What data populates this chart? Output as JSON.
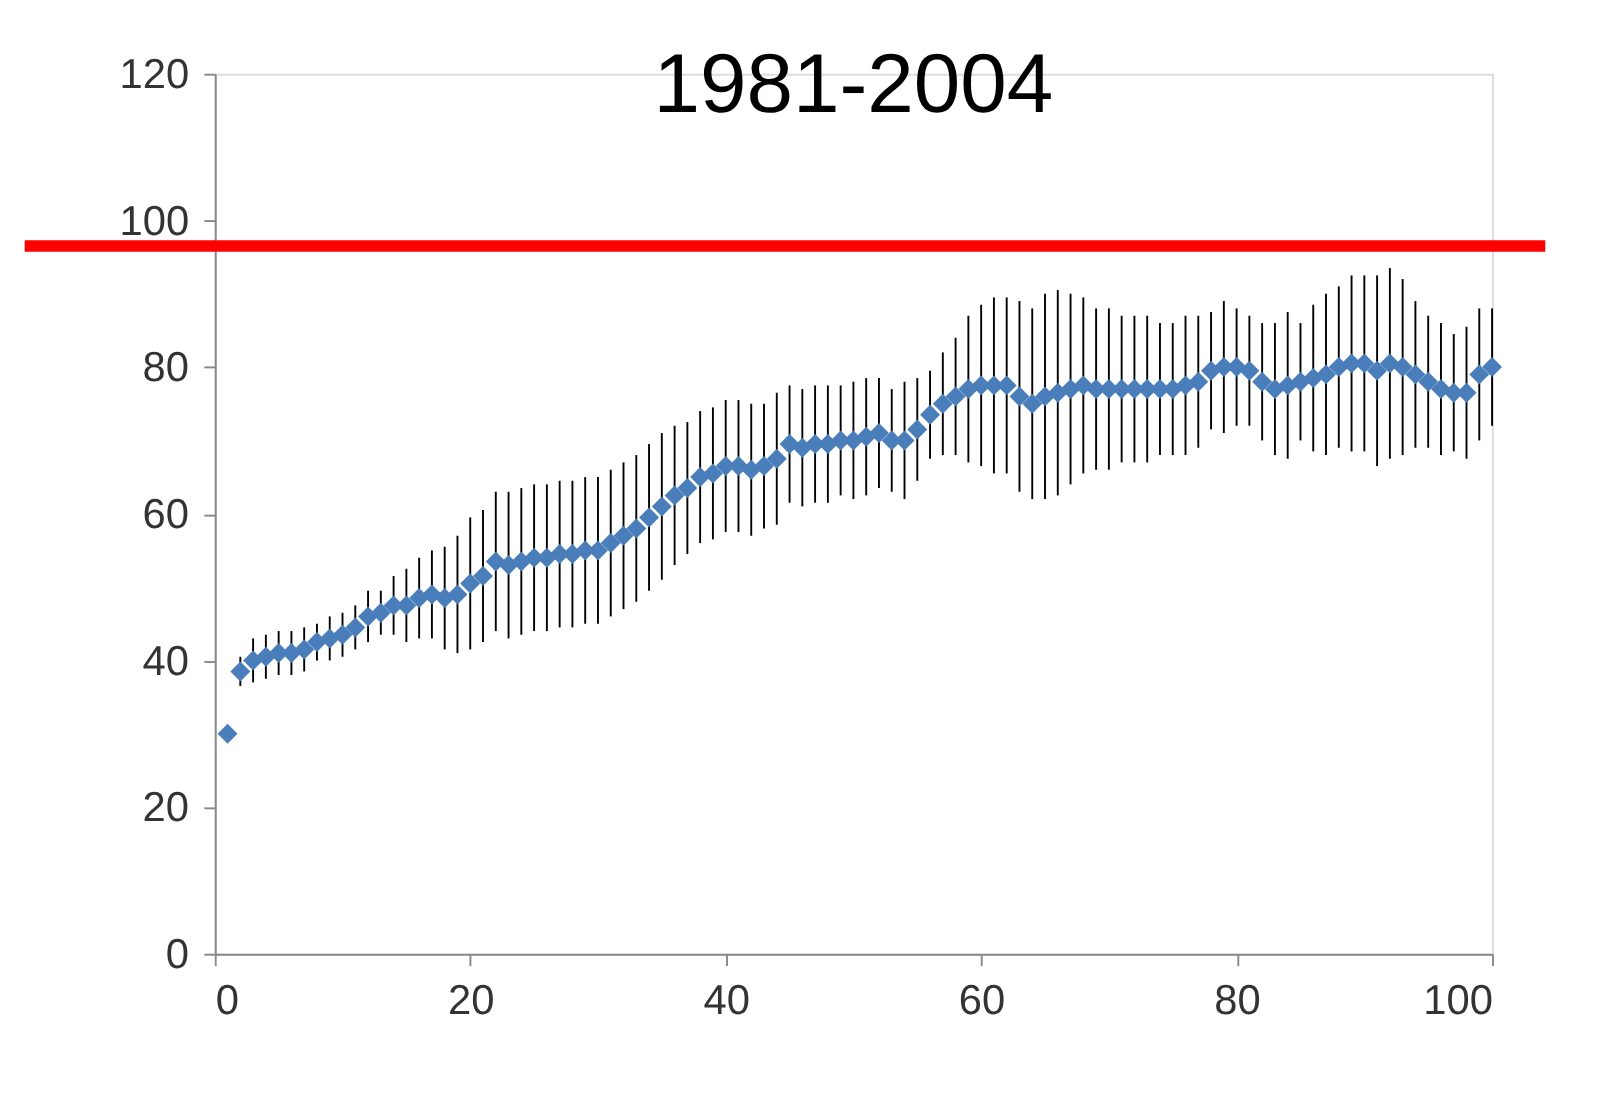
{
  "chart_data": {
    "type": "scatter",
    "title": "1981-2004",
    "x": [
      1,
      2,
      3,
      4,
      5,
      6,
      7,
      8,
      9,
      10,
      11,
      12,
      13,
      14,
      15,
      16,
      17,
      18,
      19,
      20,
      21,
      22,
      23,
      24,
      25,
      26,
      27,
      28,
      29,
      30,
      31,
      32,
      33,
      34,
      35,
      36,
      37,
      38,
      39,
      40,
      41,
      42,
      43,
      44,
      45,
      46,
      47,
      48,
      49,
      50,
      51,
      52,
      53,
      54,
      55,
      56,
      57,
      58,
      59,
      60,
      61,
      62,
      63,
      64,
      65,
      66,
      67,
      68,
      69,
      70,
      71,
      72,
      73,
      74,
      75,
      76,
      77,
      78,
      79,
      80,
      81,
      82,
      83,
      84,
      85,
      86,
      87,
      88,
      89,
      90,
      91,
      92,
      93,
      94,
      95,
      96,
      97,
      98,
      99,
      100
    ],
    "series": [
      {
        "color": "#4a7ebb",
        "values": [
          30,
          38.5,
          40,
          40.5,
          41,
          41,
          41.5,
          42.5,
          43,
          43.5,
          44.5,
          46,
          46.5,
          47.5,
          47.5,
          48.5,
          49,
          48.5,
          49,
          50.5,
          51.5,
          53.5,
          53,
          53.5,
          54,
          54,
          54.5,
          54.5,
          55,
          55,
          56,
          57,
          58,
          59.5,
          61,
          62.5,
          63.5,
          65,
          65.5,
          66.5,
          66.5,
          66,
          66.5,
          67.5,
          69.5,
          69,
          69.5,
          69.5,
          70,
          70,
          70.5,
          71,
          70,
          70,
          71.5,
          73.5,
          75,
          76,
          77,
          77.5,
          77.5,
          77.5,
          76,
          75,
          76,
          76.5,
          77,
          77.5,
          77,
          77,
          77,
          77,
          77,
          77,
          77,
          77.5,
          78,
          79.5,
          80,
          80,
          79.5,
          78,
          77,
          77.5,
          78,
          78.5,
          79,
          80,
          80.5,
          80.5,
          79.5,
          80.5,
          80,
          79,
          78,
          77,
          76.5,
          76.5,
          79,
          80
        ],
        "errors": [
          null,
          2,
          3,
          3,
          3,
          3,
          3,
          2.5,
          3,
          3,
          3,
          3.5,
          3,
          4,
          5,
          5.5,
          6,
          7,
          8,
          9,
          9,
          9.5,
          10,
          10,
          10,
          10,
          10,
          10,
          10,
          10,
          10,
          10,
          10,
          10,
          10,
          9.5,
          9,
          9,
          9,
          9,
          9,
          9,
          8.5,
          9,
          8,
          8,
          8,
          8,
          7.5,
          8,
          8,
          7.5,
          7,
          8,
          7,
          6,
          7,
          8,
          10,
          11,
          12,
          12,
          13,
          13,
          14,
          14,
          13,
          12,
          11,
          11,
          10,
          10,
          10,
          9,
          9,
          9.5,
          9,
          8,
          9,
          8,
          7.5,
          8,
          9,
          10,
          8,
          10,
          11,
          11,
          12,
          12,
          13,
          13,
          12,
          10,
          9,
          9,
          8,
          9,
          9,
          8
        ]
      }
    ],
    "marker": "diamond",
    "xlim": [
      0,
      100
    ],
    "xticks": [
      0,
      20,
      40,
      60,
      80,
      100
    ],
    "ylim": [
      0,
      120
    ],
    "yticks": [
      0,
      20,
      40,
      60,
      80,
      100,
      120
    ],
    "grid": false,
    "ref_lines": [
      {
        "axis": "y",
        "value": 96.5,
        "color": "#ff0000"
      }
    ]
  }
}
